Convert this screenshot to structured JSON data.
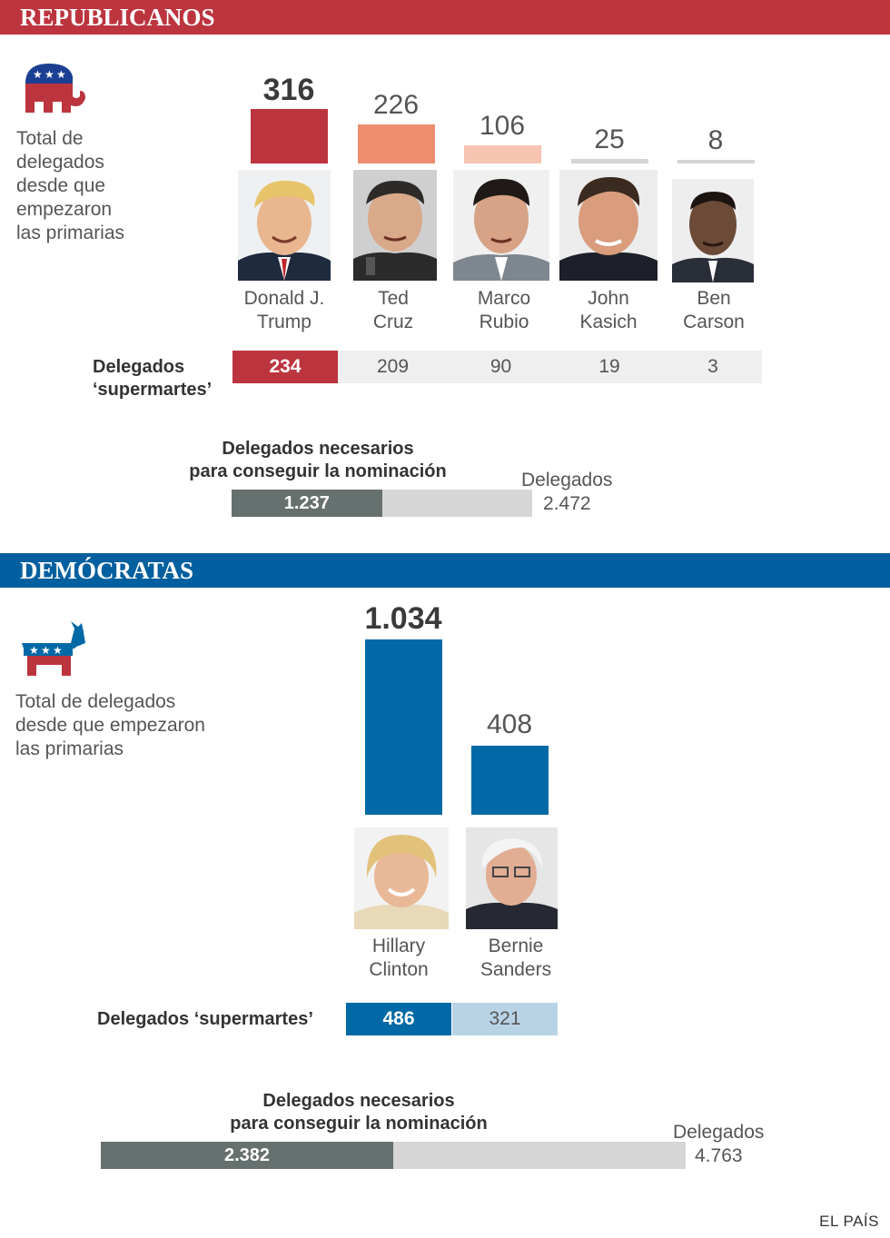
{
  "republicans": {
    "header": "REPUBLICANOS",
    "side_text": [
      "Total de",
      "delegados",
      "desde que",
      "empezaron",
      "las primarias"
    ],
    "supertuesday_label": [
      "Delegados",
      "‘supermartes’"
    ],
    "needed_label": [
      "Delegados necesarios",
      "para conseguir la nominación"
    ],
    "needed_value": "1.237",
    "needed": 1237,
    "total_label": "Delegados",
    "total_value": "2.472",
    "total": 2472
  },
  "democrats": {
    "header": "DEMÓCRATAS",
    "side_text": [
      "Total de delegados",
      "desde que empezaron",
      "las primarias"
    ],
    "supertuesday_label": "Delegados ‘supermartes’",
    "needed_label": [
      "Delegados necesarios",
      "para conseguir la nominación"
    ],
    "needed_value": "2.382",
    "needed": 2382,
    "total_label": "Delegados",
    "total_value": "4.763",
    "total": 4763
  },
  "chart_data": [
    {
      "type": "bar",
      "title": "Total de delegados desde que empezaron las primarias",
      "party": "Republicanos",
      "categories": [
        "Donald J. Trump",
        "Ted Cruz",
        "Marco Rubio",
        "John Kasich",
        "Ben Carson"
      ],
      "name_lines": [
        [
          "Donald J.",
          "Trump"
        ],
        [
          "Ted",
          "Cruz"
        ],
        [
          "Marco",
          "Rubio"
        ],
        [
          "John",
          "Kasich"
        ],
        [
          "Ben",
          "Carson"
        ]
      ],
      "values": [
        316,
        226,
        106,
        25,
        8
      ],
      "value_labels": [
        "316",
        "226",
        "106",
        "25",
        "8"
      ],
      "supertuesday": [
        234,
        209,
        90,
        19,
        3
      ],
      "supertuesday_labels": [
        "234",
        "209",
        "90",
        "19",
        "3"
      ],
      "colors": [
        "#bc343e",
        "#ef8d70",
        "#f7c4b2",
        "#d4d4d4",
        "#d4d4d4"
      ],
      "ylim": [
        0,
        316
      ]
    },
    {
      "type": "bar",
      "title": "Total de delegados desde que empezaron las primarias",
      "party": "Demócratas",
      "categories": [
        "Hillary Clinton",
        "Bernie Sanders"
      ],
      "name_lines": [
        [
          "Hillary",
          "Clinton"
        ],
        [
          "Bernie",
          "Sanders"
        ]
      ],
      "values": [
        1034,
        408
      ],
      "value_labels": [
        "1.034",
        "408"
      ],
      "supertuesday": [
        486,
        321
      ],
      "supertuesday_labels": [
        "486",
        "321"
      ],
      "colors": [
        "#0069a6",
        "#0069a6"
      ],
      "ylim": [
        0,
        1034
      ]
    }
  ],
  "colors": {
    "rep_accent": "#bc343e",
    "dem_accent": "#0069a6",
    "dem_light": "#b9d3e6",
    "neutral_row": "#efefef",
    "needed_fill": "#66706e",
    "needed_track": "#d6d6d6"
  },
  "icons": {
    "republican": "elephant-icon",
    "democrat": "donkey-icon"
  },
  "footer": "EL PAÍS"
}
